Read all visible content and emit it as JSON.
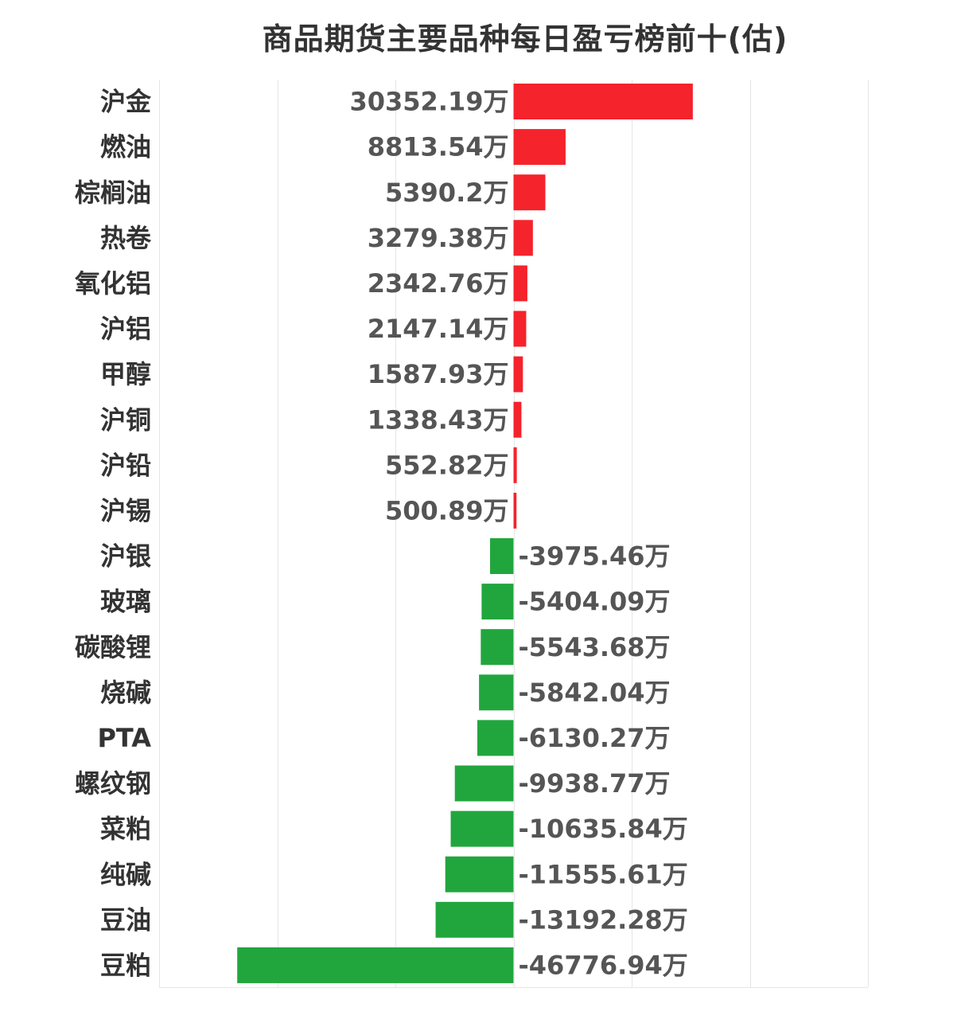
{
  "chart_data": {
    "type": "bar",
    "orientation": "horizontal",
    "title": "商品期货主要品种每日盈亏榜前十(估)",
    "unit_suffix": "万",
    "xlim": [
      -60000,
      60000
    ],
    "grid": true,
    "categories": [
      "沪金",
      "燃油",
      "棕榈油",
      "热卷",
      "氧化铝",
      "沪铝",
      "甲醇",
      "沪铜",
      "沪铅",
      "沪锡",
      "沪银",
      "玻璃",
      "碳酸锂",
      "烧碱",
      "PTA",
      "螺纹钢",
      "菜粕",
      "纯碱",
      "豆油",
      "豆粕"
    ],
    "values": [
      30352.19,
      8813.54,
      5390.2,
      3279.38,
      2342.76,
      2147.14,
      1587.93,
      1338.43,
      552.82,
      500.89,
      -3975.46,
      -5404.09,
      -5543.68,
      -5842.04,
      -6130.27,
      -9938.77,
      -10635.84,
      -11555.61,
      -13192.28,
      -46776.94
    ],
    "value_labels": [
      "30352.19万",
      "8813.54万",
      "5390.2万",
      "3279.38万",
      "2342.76万",
      "2147.14万",
      "1587.93万",
      "1338.43万",
      "552.82万",
      "500.89万",
      "-3975.46万",
      "-5404.09万",
      "-5543.68万",
      "-5842.04万",
      "-6130.27万",
      "-9938.77万",
      "-10635.84万",
      "-11555.61万",
      "-13192.28万",
      "-46776.94万"
    ],
    "colors": {
      "positive": "#f5232b",
      "negative": "#21a63d",
      "grid": "#e6e6e6",
      "category_text": "#333333",
      "value_text": "#555555"
    }
  }
}
